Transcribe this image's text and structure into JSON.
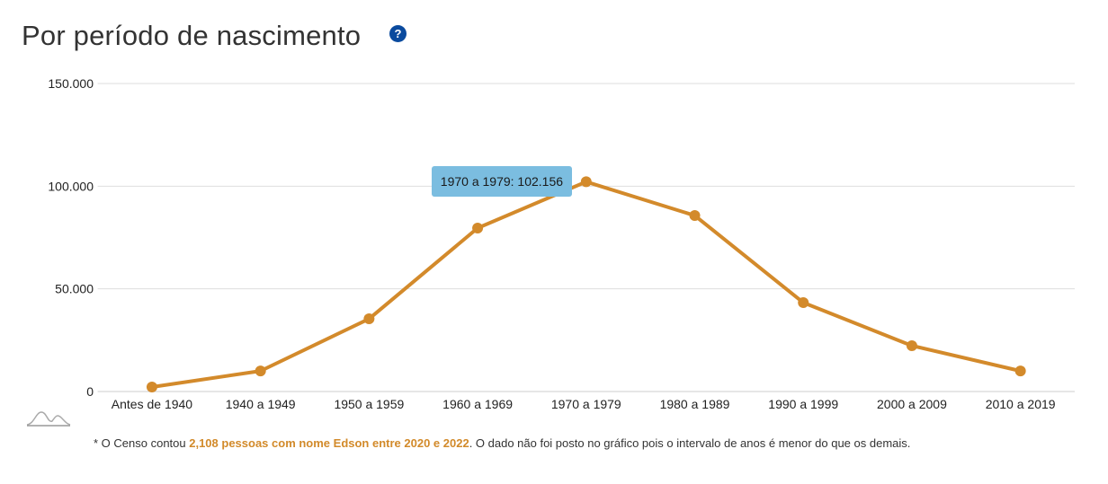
{
  "title": "Por período de nascimento",
  "help_icon": "question-circle-icon",
  "tooltip": "1970 a 1979: 102.156",
  "footnote": {
    "prefix": "* O Censo contou ",
    "highlight": "2,108 pessoas com nome Edson entre 2020 e 2022",
    "suffix": ". O dado não foi posto no gráfico pois o intervalo de anos é menor do que os demais."
  },
  "colors": {
    "line": "#d38a2b",
    "tooltip": "#7bbde0",
    "highlight": "#d28a2a",
    "help": "#0a4a9e"
  },
  "chart_data": {
    "type": "line",
    "title": "Por período de nascimento",
    "xlabel": "",
    "ylabel": "",
    "categories": [
      "Antes de 1940",
      "1940 a 1949",
      "1950 a 1959",
      "1960 a 1969",
      "1970 a 1979",
      "1980 a 1989",
      "1990 a 1999",
      "2000 a 2009",
      "2010 a 2019"
    ],
    "values": [
      2200,
      10000,
      35400,
      79600,
      102156,
      85700,
      43300,
      22300,
      10000
    ],
    "ylim": [
      0,
      150000
    ],
    "yticks": [
      0,
      50000,
      100000,
      150000
    ],
    "ytick_labels": [
      "0",
      "50.000",
      "100.000",
      "150.000"
    ],
    "grid": true,
    "legend": "none"
  }
}
